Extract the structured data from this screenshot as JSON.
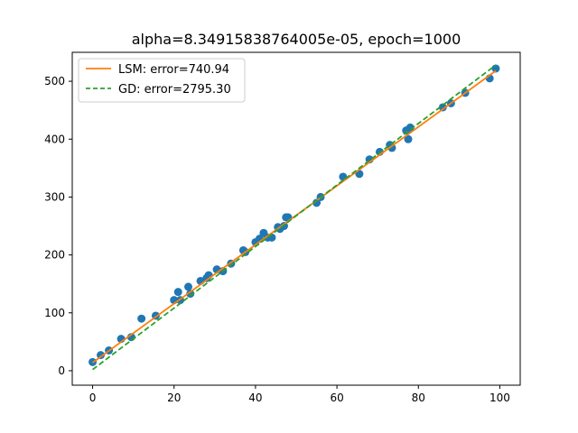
{
  "chart_data": {
    "type": "scatter",
    "title": "alpha=8.34915838764005e-05, epoch=1000",
    "xlabel": "",
    "ylabel": "",
    "xlim": [
      -5,
      105
    ],
    "ylim": [
      -25,
      550
    ],
    "x_ticks": [
      0,
      20,
      40,
      60,
      80,
      100
    ],
    "y_ticks": [
      0,
      100,
      200,
      300,
      400,
      500
    ],
    "grid": false,
    "legend_position": "top-left",
    "points": {
      "color": "#1f77b4",
      "x": [
        0,
        2,
        4,
        7,
        9.5,
        12,
        15.5,
        20,
        21,
        21.5,
        23.5,
        24,
        26.5,
        28,
        28.5,
        30.5,
        32,
        34,
        37,
        37.5,
        40,
        41,
        42,
        43,
        44,
        45.5,
        46,
        47,
        47.5,
        48,
        55,
        56,
        61.5,
        65.5,
        68,
        70.5,
        73,
        73.5,
        77,
        77.5,
        78,
        86,
        88,
        91.5,
        97.5,
        99
      ],
      "y": [
        15,
        27,
        35,
        55,
        58,
        90,
        95,
        122,
        136,
        122,
        145,
        133,
        155,
        160,
        165,
        175,
        172,
        185,
        208,
        205,
        222,
        228,
        238,
        230,
        230,
        248,
        245,
        250,
        265,
        265,
        290,
        300,
        335,
        340,
        365,
        378,
        390,
        385,
        415,
        400,
        420,
        455,
        462,
        480,
        505,
        522
      ]
    },
    "series": [
      {
        "name": "LSM: error=740.94",
        "color": "#ff7f0e",
        "style": "solid",
        "x": [
          0,
          99
        ],
        "y": [
          14,
          518
        ]
      },
      {
        "name": "GD: error=2795.30",
        "color": "#2ca02c",
        "style": "dashed",
        "x": [
          0,
          99
        ],
        "y": [
          2,
          528
        ]
      }
    ]
  }
}
